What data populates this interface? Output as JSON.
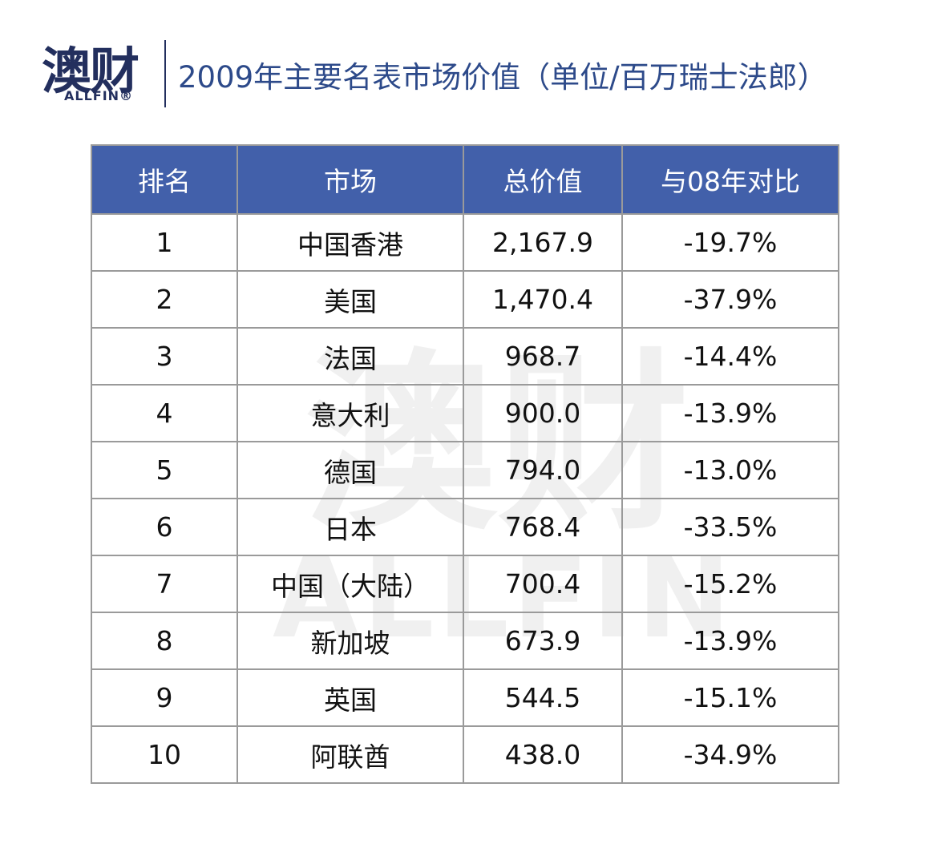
{
  "header": {
    "logo_cn": "澳财",
    "logo_en": "ALLFIN®",
    "title": "2009年主要名表市场价值（单位/百万瑞士法郎）"
  },
  "watermark": {
    "cn": "澳财",
    "en": "ALLFIN"
  },
  "table": {
    "columns": [
      "排名",
      "市场",
      "总价值",
      "与08年对比"
    ],
    "rows": [
      [
        "1",
        "中国香港",
        "2,167.9",
        "-19.7%"
      ],
      [
        "2",
        "美国",
        "1,470.4",
        "-37.9%"
      ],
      [
        "3",
        "法国",
        "968.7",
        "-14.4%"
      ],
      [
        "4",
        "意大利",
        "900.0",
        "-13.9%"
      ],
      [
        "5",
        "德国",
        "794.0",
        "-13.0%"
      ],
      [
        "6",
        "日本",
        "768.4",
        "-33.5%"
      ],
      [
        "7",
        "中国（大陆）",
        "700.4",
        "-15.2%"
      ],
      [
        "8",
        "新加坡",
        "673.9",
        "-13.9%"
      ],
      [
        "9",
        "英国",
        "544.5",
        "-15.1%"
      ],
      [
        "10",
        "阿联酋",
        "438.0",
        "-34.9%"
      ]
    ]
  }
}
